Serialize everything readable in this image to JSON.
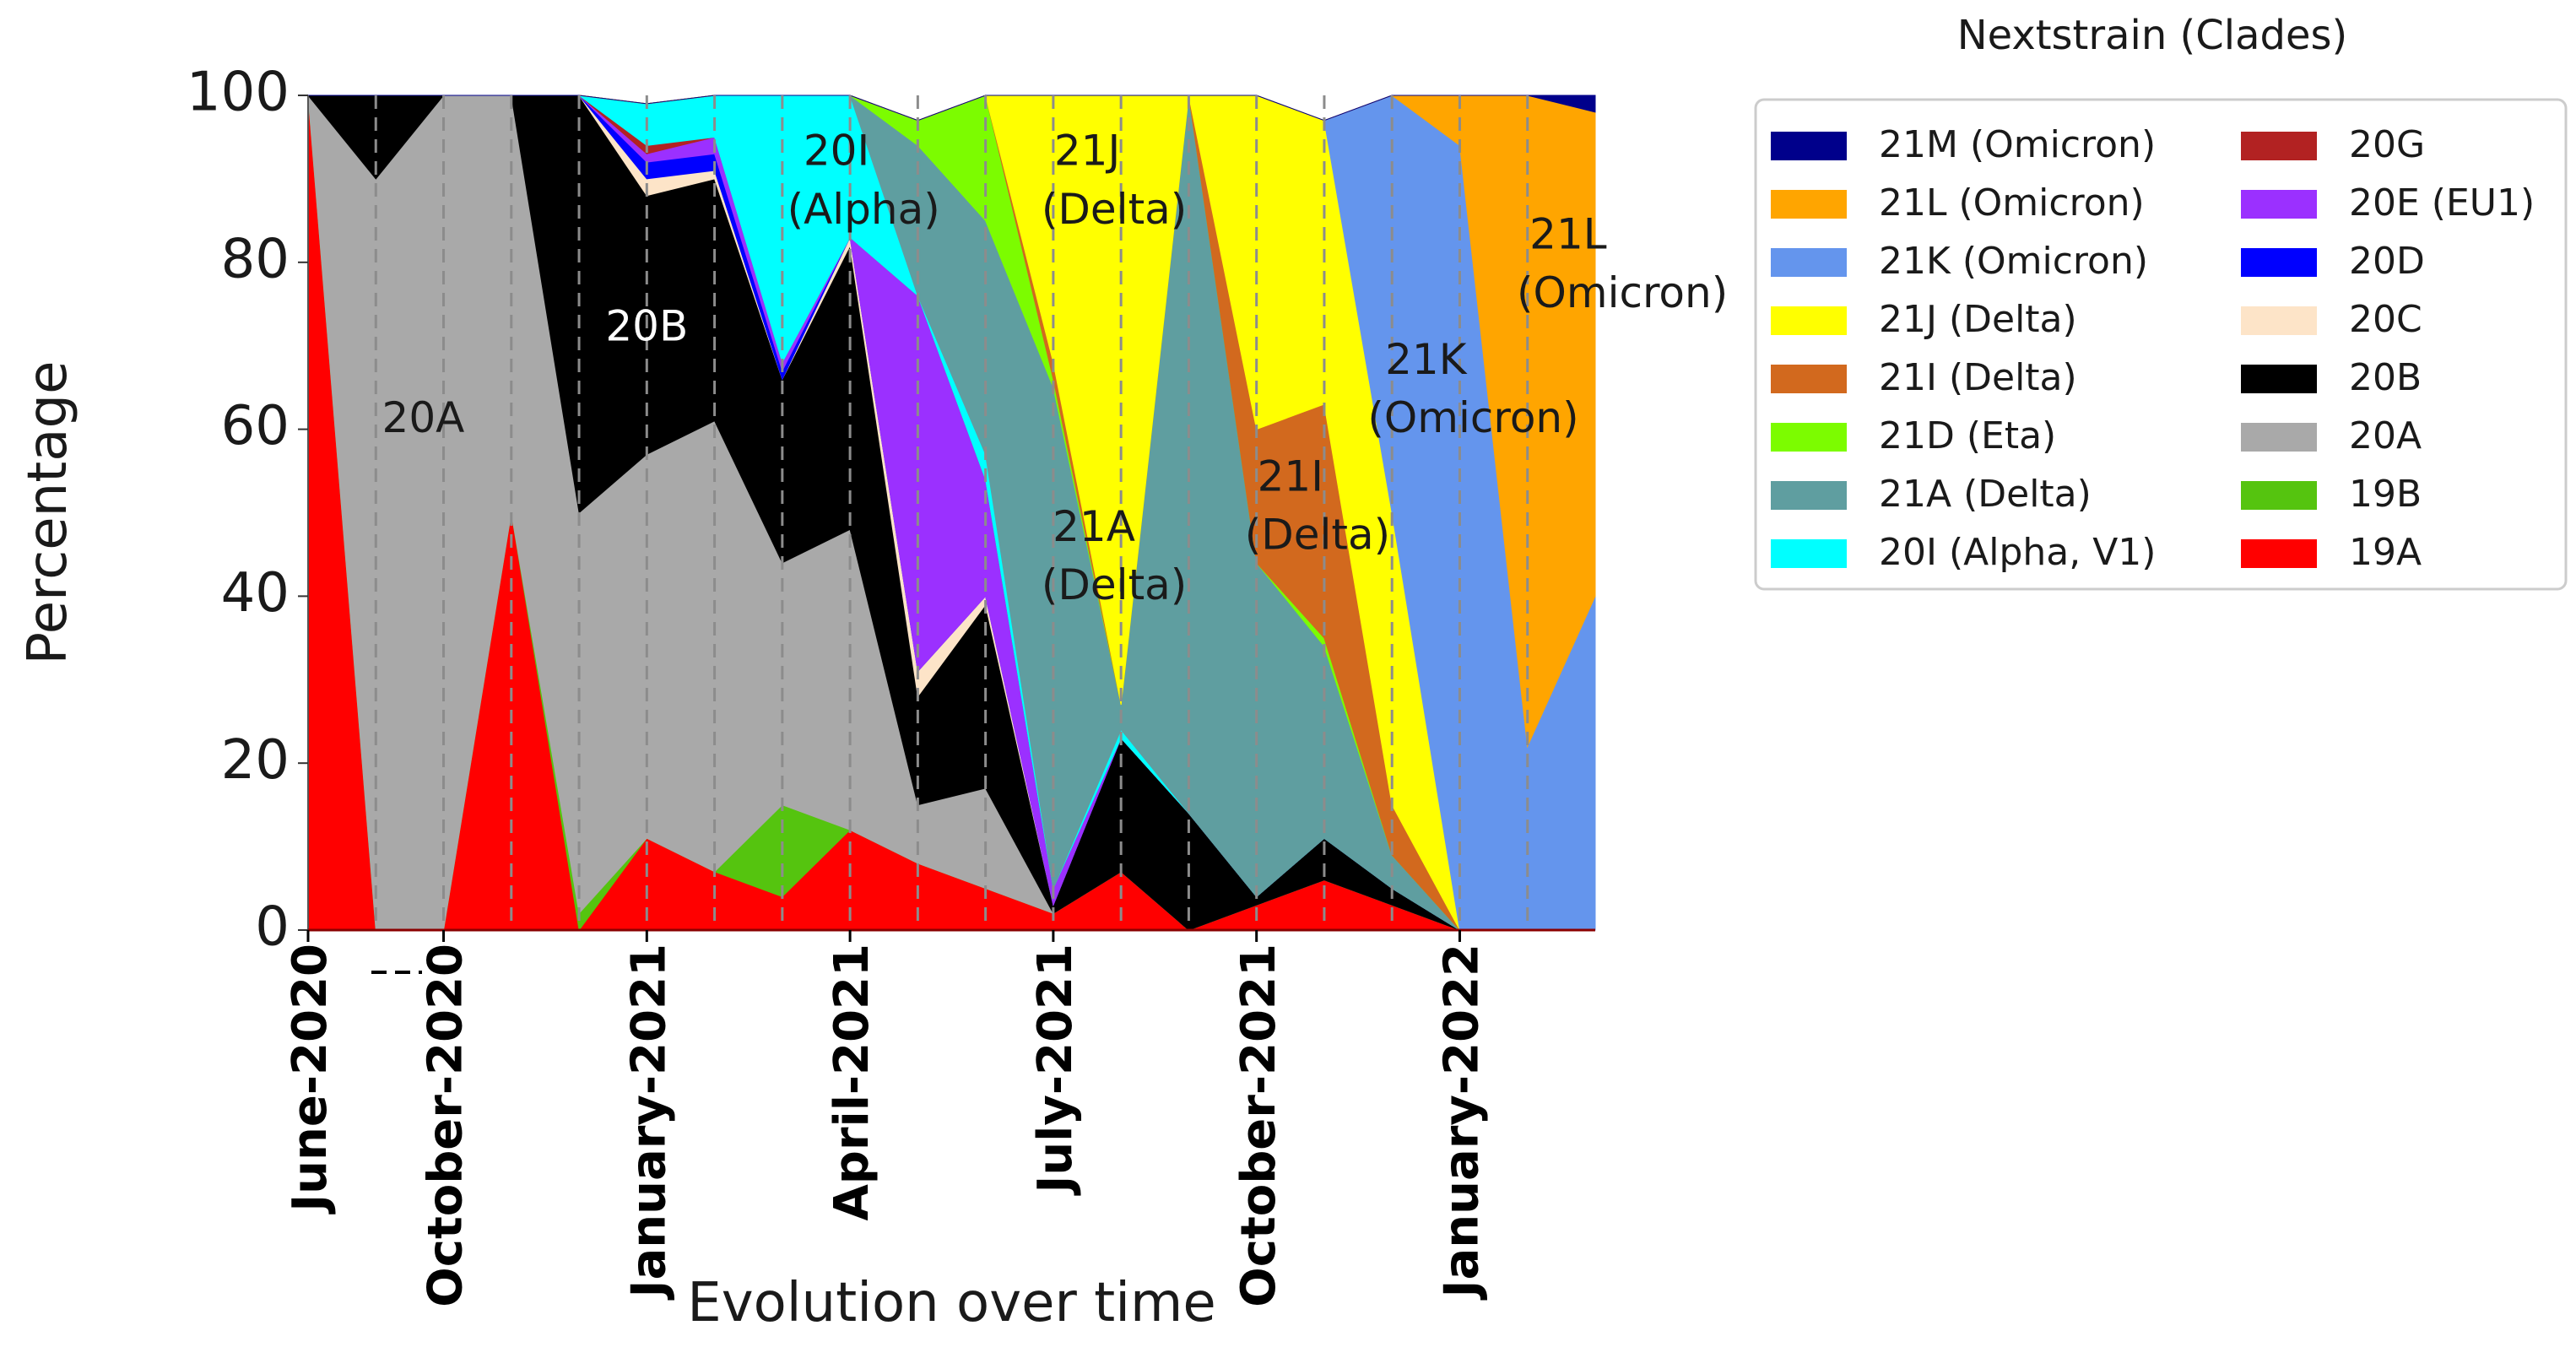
{
  "chart_data": {
    "type": "area",
    "title": "",
    "xlabel": "Evolution over time",
    "ylabel": "Percentage",
    "ylim": [
      0,
      100
    ],
    "yticks": [
      0,
      20,
      40,
      60,
      80,
      100
    ],
    "grid": "vertical dashed lines at each sample",
    "x": [
      0,
      1,
      2,
      3,
      4,
      5,
      6,
      7,
      8,
      9,
      10,
      11,
      12,
      13,
      14,
      15,
      16,
      17,
      18,
      19
    ],
    "xtick_labels": [
      {
        "index": 0,
        "label": "June-2020"
      },
      {
        "index": 2,
        "label": "October-2020"
      },
      {
        "index": 5,
        "label": "January-2021"
      },
      {
        "index": 8,
        "label": "April-2021"
      },
      {
        "index": 11,
        "label": "July-2021"
      },
      {
        "index": 14,
        "label": "October-2021"
      },
      {
        "index": 17,
        "label": "January-2022"
      }
    ],
    "series": [
      {
        "name": "19A",
        "color": "#ff0000",
        "values": [
          100,
          0,
          0,
          50,
          0,
          11,
          7,
          4,
          12,
          8,
          5,
          2,
          7,
          0,
          3,
          6,
          3,
          0,
          0,
          0
        ]
      },
      {
        "name": "19B",
        "color": "#55c40f",
        "values": [
          0,
          0,
          0,
          0,
          2,
          0,
          0,
          11,
          0,
          0,
          0,
          0,
          0,
          0,
          0,
          0,
          0,
          0,
          0,
          0
        ]
      },
      {
        "name": "20A",
        "color": "#a9a9a9",
        "values": [
          0,
          90,
          100,
          50,
          48,
          46,
          54,
          29,
          36,
          7,
          12,
          0,
          0,
          0,
          0,
          0,
          0,
          0,
          0,
          0
        ]
      },
      {
        "name": "20B",
        "color": "#000000",
        "values": [
          0,
          10,
          0,
          0,
          50,
          31,
          29,
          22,
          34,
          13,
          22,
          1,
          16,
          14,
          1,
          5,
          2,
          0,
          0,
          0
        ]
      },
      {
        "name": "20C",
        "color": "#fde4c8",
        "values": [
          0,
          0,
          0,
          0,
          0,
          2,
          1,
          0,
          1,
          3,
          1,
          0,
          0,
          0,
          0,
          0,
          0,
          0,
          0,
          0
        ]
      },
      {
        "name": "20D",
        "color": "#0000ff",
        "values": [
          0,
          0,
          0,
          0,
          0,
          2,
          2,
          1,
          0,
          0,
          0,
          0,
          0,
          0,
          0,
          0,
          0,
          0,
          0,
          0
        ]
      },
      {
        "name": "20E (EU1)",
        "color": "#9b30ff",
        "values": [
          0,
          0,
          0,
          0,
          0,
          1,
          2,
          1,
          0,
          45,
          14,
          2,
          0,
          0,
          0,
          0,
          0,
          0,
          0,
          0
        ]
      },
      {
        "name": "20G",
        "color": "#b22222",
        "values": [
          0,
          0,
          0,
          0,
          0,
          1,
          0,
          0,
          0,
          0,
          0,
          0,
          0,
          0,
          0,
          0,
          0,
          0,
          0,
          0
        ]
      },
      {
        "name": "20I (Alpha, V1)",
        "color": "#00ffff",
        "values": [
          0,
          0,
          0,
          0,
          0,
          5,
          5,
          32,
          17,
          0,
          3,
          0,
          1,
          0,
          0,
          0,
          0,
          0,
          0,
          0
        ]
      },
      {
        "name": "21A (Delta)",
        "color": "#5f9ea0",
        "values": [
          0,
          0,
          0,
          0,
          0,
          0,
          0,
          0,
          0,
          18,
          28,
          60,
          3,
          86,
          40,
          23,
          4,
          0,
          0,
          0
        ]
      },
      {
        "name": "21D (Eta)",
        "color": "#7cfc00",
        "values": [
          0,
          0,
          0,
          0,
          0,
          0,
          0,
          0,
          0,
          3,
          15,
          1,
          0,
          0,
          0,
          1,
          0,
          0,
          0,
          0
        ]
      },
      {
        "name": "21I (Delta)",
        "color": "#d2691e",
        "values": [
          0,
          0,
          0,
          0,
          0,
          0,
          0,
          0,
          0,
          0,
          0,
          2,
          0,
          0,
          16,
          28,
          6,
          0,
          0,
          0
        ]
      },
      {
        "name": "21J (Delta)",
        "color": "#ffff00",
        "values": [
          0,
          0,
          0,
          0,
          0,
          0,
          0,
          0,
          0,
          0,
          0,
          32,
          73,
          0,
          40,
          34,
          35,
          0,
          0,
          0
        ]
      },
      {
        "name": "21K (Omicron)",
        "color": "#6495ed",
        "values": [
          0,
          0,
          0,
          0,
          0,
          0,
          0,
          0,
          0,
          0,
          0,
          0,
          0,
          0,
          0,
          0,
          50,
          94,
          22,
          40
        ]
      },
      {
        "name": "21L (Omicron)",
        "color": "#ffa500",
        "values": [
          0,
          0,
          0,
          0,
          0,
          0,
          0,
          0,
          0,
          0,
          0,
          0,
          0,
          0,
          0,
          0,
          0,
          6,
          78,
          58
        ]
      },
      {
        "name": "21M (Omicron)",
        "color": "#00008b",
        "values": [
          0,
          0,
          0,
          0,
          0,
          0,
          0,
          0,
          0,
          0,
          0,
          0,
          0,
          0,
          0,
          0,
          0,
          0,
          0,
          2
        ]
      }
    ],
    "annotations": [
      {
        "text": "20A",
        "x": 1.7,
        "y": 61,
        "color": "dark"
      },
      {
        "text": "20B",
        "x": 5.0,
        "y": 72,
        "color": "white"
      },
      {
        "text": "20I",
        "x": 7.8,
        "y": 93,
        "color": "dark"
      },
      {
        "text": "(Alpha)",
        "x": 8.2,
        "y": 86,
        "color": "dark"
      },
      {
        "text": "21J",
        "x": 11.5,
        "y": 93,
        "color": "dark"
      },
      {
        "text": "(Delta)",
        "x": 11.9,
        "y": 86,
        "color": "dark"
      },
      {
        "text": "21A",
        "x": 11.6,
        "y": 48,
        "color": "dark"
      },
      {
        "text": "(Delta)",
        "x": 11.9,
        "y": 41,
        "color": "dark"
      },
      {
        "text": "21I",
        "x": 14.5,
        "y": 54,
        "color": "dark"
      },
      {
        "text": "(Delta)",
        "x": 14.9,
        "y": 47,
        "color": "dark"
      },
      {
        "text": "21K",
        "x": 16.5,
        "y": 68,
        "color": "dark"
      },
      {
        "text": "(Omicron)",
        "x": 17.2,
        "y": 61,
        "color": "dark"
      },
      {
        "text": "21L",
        "x": 18.6,
        "y": 83,
        "color": "dark"
      },
      {
        "text": "(Omicron)",
        "x": 19.4,
        "y": 76,
        "color": "dark"
      }
    ],
    "legend": {
      "title": "Nextstrain (Clades)",
      "placement": "right",
      "columns": [
        [
          "21M (Omicron)",
          "21L (Omicron)",
          "21K (Omicron)",
          "21J (Delta)",
          "21I (Delta)",
          "21D (Eta)",
          "21A (Delta)",
          "20I (Alpha, V1)"
        ],
        [
          "20G",
          "20E (EU1)",
          "20D",
          "20C",
          "20B",
          "20A",
          "19B",
          "19A"
        ]
      ]
    }
  }
}
